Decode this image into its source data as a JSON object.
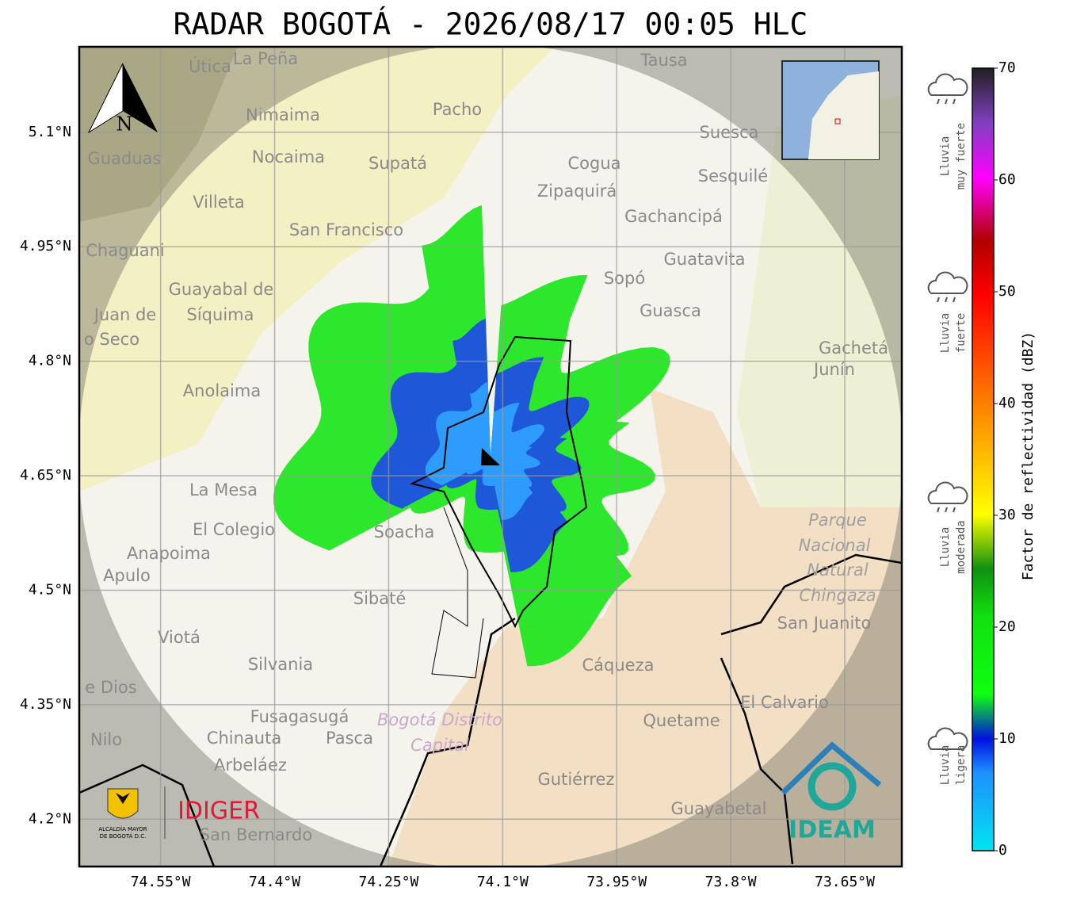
{
  "title": "RADAR BOGOTÁ - 2026/08/17 00:05 HLC",
  "map": {
    "lat_range": [
      4.138,
      5.212
    ],
    "lon_range": [
      -74.657,
      -73.575
    ],
    "lat_ticks": [
      {
        "value": 5.1,
        "label": "5.1°N"
      },
      {
        "value": 4.95,
        "label": "4.95°N"
      },
      {
        "value": 4.8,
        "label": "4.8°N"
      },
      {
        "value": 4.65,
        "label": "4.65°N"
      },
      {
        "value": 4.5,
        "label": "4.5°N"
      },
      {
        "value": 4.35,
        "label": "4.35°N"
      },
      {
        "value": 4.2,
        "label": "4.2°N"
      }
    ],
    "lon_ticks": [
      {
        "value": -74.55,
        "label": "74.55°W"
      },
      {
        "value": -74.4,
        "label": "74.4°W"
      },
      {
        "value": -74.25,
        "label": "74.25°W"
      },
      {
        "value": -74.1,
        "label": "74.1°W"
      },
      {
        "value": -73.95,
        "label": "73.95°W"
      },
      {
        "value": -73.8,
        "label": "73.8°W"
      },
      {
        "value": -73.65,
        "label": "73.65°W"
      }
    ],
    "north": "N",
    "places": [
      "Útica",
      "La Peña",
      "Tausa",
      "Pacho",
      "Nimaima",
      "Guaduas",
      "Nocaima",
      "Supatá",
      "Cogua",
      "Suesca",
      "Sesquilé",
      "Zipaquirá",
      "Villeta",
      "Gachancipá",
      "San Francisco",
      "Chaguani",
      "Guatavita",
      "Sopó",
      "Guayabal de",
      "Síquima",
      "Juan de",
      "o Seco",
      "Guasca",
      "Gachetá",
      "Junín",
      "Anolaima",
      "La Mesa",
      "El Colegio",
      "Soacha",
      "Anapoima",
      "Apulo",
      "Parque",
      "Nacional",
      "Natural",
      "Chingaza",
      "Sibaté",
      "San Juanito",
      "Viotá",
      "Silvania",
      "Cáqueza",
      "e Dios",
      "El Calvario",
      "Fusagasugá",
      "Bogotá Distrito",
      "Capital",
      "Quetame",
      "Nilo",
      "Chinauta",
      "Pasca",
      "Arbeláez",
      "Gutiérrez",
      "Guayabetal",
      "San Bernardo"
    ]
  },
  "colorbar": {
    "label": "Factor de reflectividad (dBZ)",
    "range": [
      0,
      70
    ],
    "ticks": [
      0,
      10,
      20,
      30,
      40,
      50,
      60,
      70
    ],
    "categories": [
      [
        "Lluvia",
        "muy fuerte"
      ],
      [
        "Lluvia",
        "fuerte"
      ],
      [
        "Lluvia",
        "moderada"
      ],
      [
        "Lluvia",
        "ligera"
      ]
    ]
  },
  "logos": {
    "alcaldia": [
      "ALCALDÍA MAYOR",
      "DE BOGOTÁ D.C."
    ],
    "idiger": "IDIGER",
    "ideam": "IDEAM"
  }
}
